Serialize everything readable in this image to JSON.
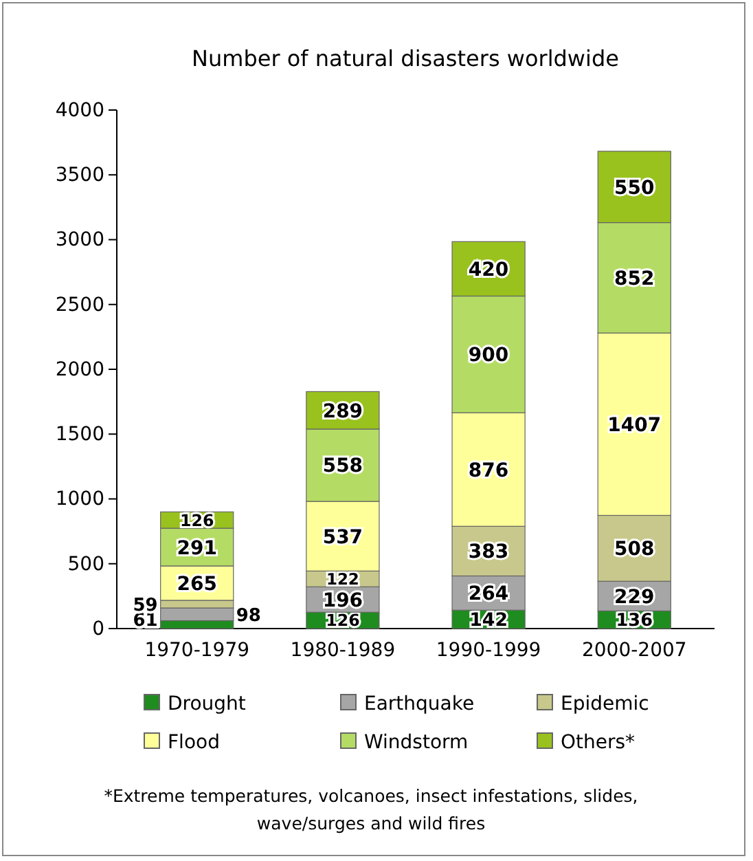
{
  "chart_data": {
    "type": "bar",
    "title": "Number of natural disasters worldwide",
    "stacked": true,
    "categories": [
      "1970-1979",
      "1980-1989",
      "1990-1999",
      "2000-2007"
    ],
    "series": [
      {
        "name": "Drought",
        "color": "#1e8c1e",
        "values": [
          61,
          126,
          142,
          136
        ]
      },
      {
        "name": "Earthquake",
        "color": "#a6a6a6",
        "values": [
          98,
          196,
          264,
          229
        ]
      },
      {
        "name": "Epidemic",
        "color": "#c8c88c",
        "values": [
          59,
          122,
          383,
          508
        ]
      },
      {
        "name": "Flood",
        "color": "#ffff99",
        "values": [
          265,
          537,
          876,
          1407
        ]
      },
      {
        "name": "Windstorm",
        "color": "#b4dc64",
        "values": [
          291,
          558,
          900,
          852
        ]
      },
      {
        "name": "Others*",
        "color": "#99c21e",
        "values": [
          126,
          289,
          420,
          550
        ]
      }
    ],
    "ylim": [
      0,
      4000
    ],
    "yticks": [
      0,
      500,
      1000,
      1500,
      2000,
      2500,
      3000,
      3500,
      4000
    ],
    "data_labels": true,
    "legend": "bottom",
    "annotations": [
      "*Extreme temperatures, volcanoes, insect infestations, slides, wave/surges and wild fires"
    ]
  }
}
